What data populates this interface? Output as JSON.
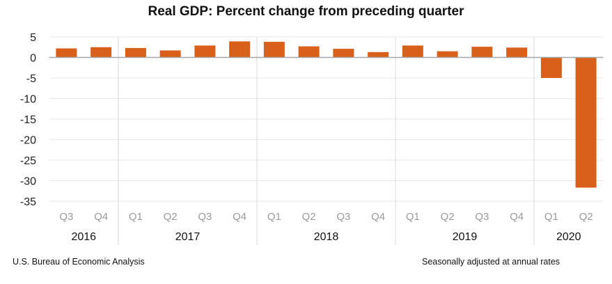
{
  "chart_data": {
    "type": "bar",
    "title": "Real GDP:  Percent change from preceding quarter",
    "xlabel": "",
    "ylabel": "",
    "ylim": [
      -35,
      5
    ],
    "yticks": [
      5,
      0,
      -5,
      -10,
      -15,
      -20,
      -25,
      -30,
      -35
    ],
    "grid": true,
    "categories": [
      "Q3",
      "Q4",
      "Q1",
      "Q2",
      "Q3",
      "Q4",
      "Q1",
      "Q2",
      "Q3",
      "Q4",
      "Q1",
      "Q2",
      "Q3",
      "Q4",
      "Q1",
      "Q2"
    ],
    "groups": [
      {
        "label": "2016",
        "count": 2
      },
      {
        "label": "2017",
        "count": 4
      },
      {
        "label": "2018",
        "count": 4
      },
      {
        "label": "2019",
        "count": 4
      },
      {
        "label": "2020",
        "count": 2
      }
    ],
    "values": [
      2.2,
      2.5,
      2.3,
      1.7,
      2.9,
      3.9,
      3.8,
      2.7,
      2.1,
      1.3,
      2.9,
      1.5,
      2.6,
      2.4,
      -5.0,
      -31.7
    ],
    "bar_color": "#D9601A"
  },
  "footer": {
    "source": "U.S. Bureau of Economic Analysis",
    "note": "Seasonally adjusted at annual rates"
  }
}
